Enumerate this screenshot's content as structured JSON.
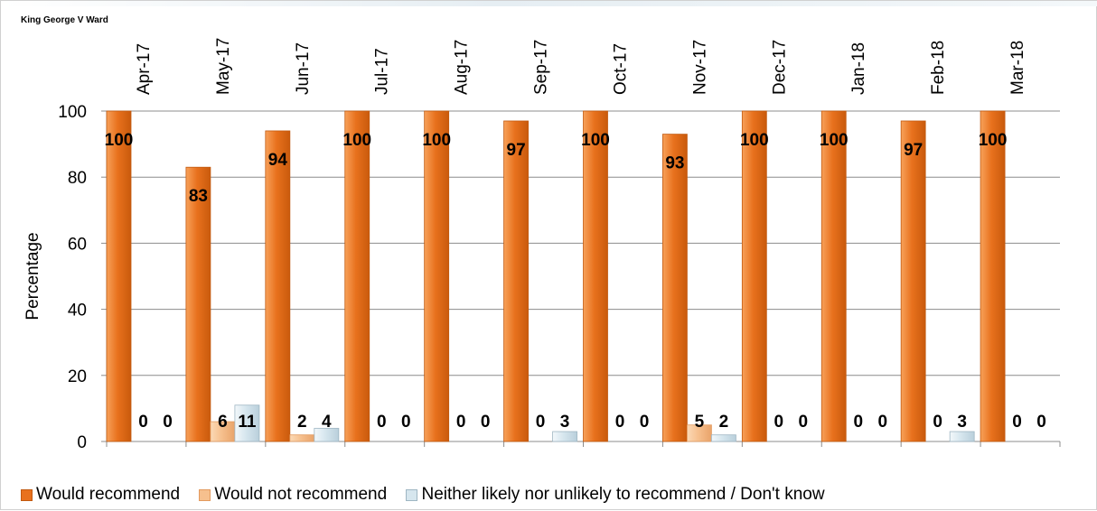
{
  "chart_data": {
    "type": "bar",
    "title": "King George V Ward",
    "ylabel": "Percentage",
    "xlabel": "",
    "ylim": [
      0,
      100
    ],
    "yticks": [
      0,
      20,
      40,
      60,
      80,
      100
    ],
    "grid": true,
    "legend_position": "bottom",
    "categories": [
      "Apr-17",
      "May-17",
      "Jun-17",
      "Jul-17",
      "Aug-17",
      "Sep-17",
      "Oct-17",
      "Nov-17",
      "Dec-17",
      "Jan-18",
      "Feb-18",
      "Mar-18"
    ],
    "series": [
      {
        "name": "Would recommend",
        "color": "#e8711d",
        "values": [
          100,
          83,
          94,
          100,
          100,
          97,
          100,
          93,
          100,
          100,
          97,
          100
        ]
      },
      {
        "name": "Would not recommend",
        "color": "#f6c08e",
        "values": [
          0,
          6,
          2,
          0,
          0,
          0,
          0,
          5,
          0,
          0,
          0,
          0
        ]
      },
      {
        "name": "Neither likely nor unlikely to recommend / Don't know",
        "color": "#d6e6ee",
        "values": [
          0,
          11,
          4,
          0,
          0,
          3,
          0,
          2,
          0,
          0,
          3,
          0
        ]
      }
    ]
  }
}
